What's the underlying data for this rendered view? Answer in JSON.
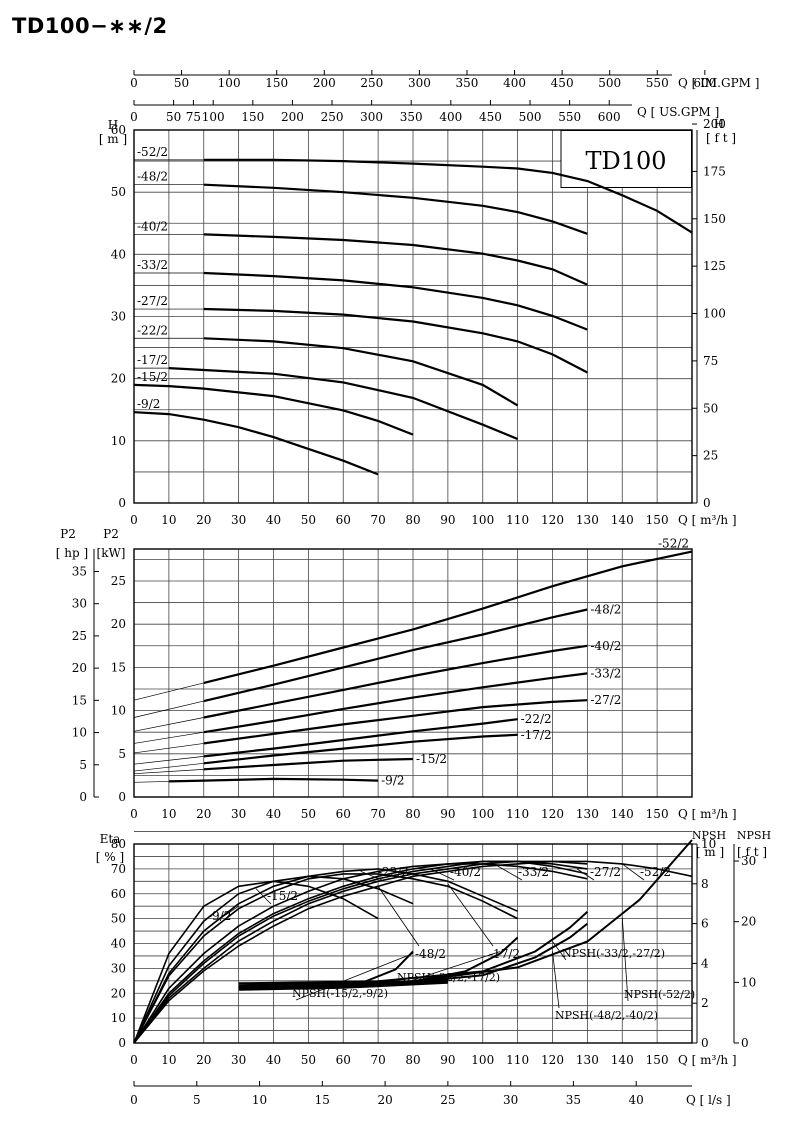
{
  "title": "TD100−∗∗/2",
  "chart_data": [
    {
      "id": "head",
      "type": "line",
      "model_label": "TD100",
      "top_axis_1": {
        "label": "Q [ IM.GPM ]",
        "ticks": [
          "0",
          "50",
          "100",
          "150",
          "200",
          "250",
          "300",
          "350",
          "400",
          "450",
          "500",
          "550",
          "600"
        ]
      },
      "top_axis_2": {
        "label": "Q [ US.GPM ]",
        "ticks": [
          "0",
          "50",
          "75",
          "100",
          "150",
          "200",
          "250",
          "300",
          "350",
          "400",
          "450",
          "500",
          "550",
          "600"
        ]
      },
      "xlabel": "Q [ m³/h ]",
      "x_ticks": [
        "0",
        "10",
        "20",
        "30",
        "40",
        "50",
        "60",
        "70",
        "80",
        "90",
        "100",
        "110",
        "120",
        "130",
        "140",
        "150"
      ],
      "xlim": [
        0,
        160
      ],
      "ylabel_left": "H [ m ]",
      "ylim": [
        0,
        60
      ],
      "y_ticks": [
        "0",
        "10",
        "20",
        "30",
        "40",
        "50",
        "60"
      ],
      "ylabel_right": "H [ f t ]",
      "y_right_ticks": [
        "0",
        "25",
        "50",
        "75",
        "100",
        "125",
        "150",
        "175",
        "200"
      ],
      "series": [
        {
          "name": "-52/2",
          "x": [
            20,
            40,
            60,
            80,
            100,
            110,
            120,
            130,
            140,
            150,
            160
          ],
          "y": [
            55.2,
            55.2,
            55.0,
            54.6,
            54.1,
            53.8,
            53.1,
            51.8,
            49.5,
            47.0,
            43.5
          ]
        },
        {
          "name": "-48/2",
          "x": [
            20,
            40,
            60,
            80,
            100,
            110,
            120,
            130
          ],
          "y": [
            51.2,
            50.7,
            50.0,
            49.1,
            47.8,
            46.8,
            45.3,
            43.3
          ]
        },
        {
          "name": "-40/2",
          "x": [
            20,
            40,
            60,
            80,
            100,
            110,
            120,
            130
          ],
          "y": [
            43.2,
            42.8,
            42.3,
            41.5,
            40.1,
            39.0,
            37.6,
            35.1
          ]
        },
        {
          "name": "-33/2",
          "x": [
            20,
            40,
            60,
            80,
            100,
            110,
            120,
            130
          ],
          "y": [
            37.0,
            36.5,
            35.8,
            34.7,
            33.0,
            31.8,
            30.1,
            27.9
          ]
        },
        {
          "name": "-27/2",
          "x": [
            20,
            40,
            60,
            80,
            100,
            110,
            120,
            130
          ],
          "y": [
            31.2,
            30.9,
            30.3,
            29.2,
            27.3,
            26.0,
            23.9,
            21.0
          ]
        },
        {
          "name": "-22/2",
          "x": [
            20,
            40,
            60,
            80,
            100,
            110
          ],
          "y": [
            26.5,
            26.0,
            24.9,
            22.8,
            19.0,
            15.7
          ]
        },
        {
          "name": "-17/2",
          "x": [
            10,
            20,
            40,
            60,
            80,
            100,
            110
          ],
          "y": [
            21.7,
            21.4,
            20.8,
            19.4,
            16.9,
            12.6,
            10.3
          ]
        },
        {
          "name": "-15/2",
          "x": [
            0,
            10,
            20,
            40,
            60,
            70,
            80
          ],
          "y": [
            19.0,
            18.8,
            18.4,
            17.2,
            14.9,
            13.2,
            11.0
          ]
        },
        {
          "name": "-9/2",
          "x": [
            0,
            10,
            20,
            30,
            40,
            50,
            60,
            70
          ],
          "y": [
            14.6,
            14.3,
            13.4,
            12.2,
            10.6,
            8.7,
            6.8,
            4.6
          ]
        }
      ]
    },
    {
      "id": "power",
      "type": "line",
      "xlabel": "Q [ m³/h ]",
      "x_ticks": [
        "0",
        "10",
        "20",
        "30",
        "40",
        "50",
        "60",
        "70",
        "80",
        "90",
        "100",
        "110",
        "120",
        "130",
        "140",
        "150"
      ],
      "xlim": [
        0,
        160
      ],
      "ylabel_kw": "P2 [kW]",
      "ylim_kw": [
        0,
        28.7
      ],
      "y_ticks_kw": [
        "0",
        "5",
        "10",
        "15",
        "20",
        "25"
      ],
      "ylabel_hp": "P2 [ hp ]",
      "y_ticks_hp": [
        "0",
        "5",
        "10",
        "15",
        "20",
        "25",
        "30",
        "35"
      ],
      "series": [
        {
          "name": "-52/2",
          "x": [
            20,
            40,
            60,
            80,
            100,
            120,
            140,
            160
          ],
          "y": [
            13.2,
            15.2,
            17.3,
            19.4,
            21.8,
            24.4,
            26.7,
            28.4
          ]
        },
        {
          "name": "-48/2",
          "x": [
            20,
            40,
            60,
            80,
            100,
            120,
            130
          ],
          "y": [
            11.1,
            13.0,
            15.0,
            17.0,
            18.8,
            20.8,
            21.7
          ]
        },
        {
          "name": "-40/2",
          "x": [
            20,
            40,
            60,
            80,
            100,
            120,
            130
          ],
          "y": [
            9.2,
            10.8,
            12.4,
            14.0,
            15.5,
            16.9,
            17.5
          ]
        },
        {
          "name": "-33/2",
          "x": [
            20,
            40,
            60,
            80,
            100,
            120,
            130
          ],
          "y": [
            7.5,
            8.8,
            10.2,
            11.5,
            12.7,
            13.8,
            14.3
          ]
        },
        {
          "name": "-27/2",
          "x": [
            20,
            40,
            60,
            80,
            100,
            120,
            130
          ],
          "y": [
            6.2,
            7.3,
            8.4,
            9.4,
            10.4,
            11.0,
            11.2
          ]
        },
        {
          "name": "-22/2",
          "x": [
            20,
            40,
            60,
            80,
            100,
            110
          ],
          "y": [
            4.7,
            5.6,
            6.6,
            7.6,
            8.5,
            9.0
          ]
        },
        {
          "name": "-17/2",
          "x": [
            20,
            40,
            60,
            80,
            100,
            110
          ],
          "y": [
            3.9,
            4.8,
            5.6,
            6.4,
            7.0,
            7.2
          ]
        },
        {
          "name": "-15/2",
          "x": [
            20,
            40,
            60,
            70,
            80
          ],
          "y": [
            3.2,
            3.7,
            4.2,
            4.3,
            4.4
          ]
        },
        {
          "name": "-9/2",
          "x": [
            10,
            20,
            40,
            60,
            70
          ],
          "y": [
            1.8,
            1.9,
            2.1,
            2.0,
            1.9
          ]
        }
      ]
    },
    {
      "id": "efficiency",
      "type": "line",
      "xlabel": "Q [ m³/h ]",
      "x_ticks": [
        "0",
        "10",
        "20",
        "30",
        "40",
        "50",
        "60",
        "70",
        "80",
        "90",
        "100",
        "110",
        "120",
        "130",
        "140",
        "150"
      ],
      "xlim": [
        0,
        160
      ],
      "ylabel": "Eta [ % ]",
      "ylim": [
        0,
        80
      ],
      "y_ticks": [
        "0",
        "10",
        "20",
        "30",
        "40",
        "50",
        "60",
        "70",
        "80"
      ],
      "npsh_m_label": "NPSH [ m ]",
      "npsh_m_ticks": [
        "0",
        "2",
        "4",
        "6",
        "8",
        "10"
      ],
      "npsh_ft_label": "NPSH [ f t ]",
      "npsh_ft_ticks": [
        "0",
        "10",
        "20",
        "30"
      ],
      "bottom_axis": {
        "label": "Q [ l/s ]",
        "ticks": [
          "0",
          "5",
          "10",
          "15",
          "20",
          "25",
          "30",
          "35",
          "40"
        ]
      },
      "series": [
        {
          "name": "-9/2",
          "x": [
            0,
            10,
            20,
            30,
            40,
            50,
            60,
            70
          ],
          "y": [
            0,
            36,
            55,
            63,
            65,
            63,
            58,
            50
          ]
        },
        {
          "name": "-15/2",
          "x": [
            0,
            10,
            20,
            30,
            40,
            50,
            60,
            70,
            80
          ],
          "y": [
            0,
            31,
            49,
            60,
            65,
            67,
            66,
            62,
            56
          ]
        },
        {
          "name": "-22/2",
          "x": [
            0,
            10,
            20,
            30,
            40,
            50,
            60,
            70,
            80,
            90,
            100,
            110
          ],
          "y": [
            0,
            27,
            43,
            54,
            61,
            66,
            68,
            68,
            66,
            63,
            57,
            50
          ]
        },
        {
          "name": "-17/2",
          "x": [
            0,
            10,
            20,
            30,
            40,
            50,
            60,
            70,
            80,
            90,
            100,
            110
          ],
          "y": [
            0,
            28,
            45,
            56,
            63,
            67,
            69,
            70,
            68,
            65,
            59,
            53
          ]
        },
        {
          "name": "-27/2",
          "x": [
            0,
            10,
            20,
            30,
            40,
            50,
            60,
            70,
            80,
            90,
            100,
            110,
            120,
            130
          ],
          "y": [
            0,
            22,
            36,
            47,
            55,
            61,
            66,
            69,
            71,
            72,
            72,
            71,
            69,
            66
          ]
        },
        {
          "name": "-33/2",
          "x": [
            0,
            10,
            20,
            30,
            40,
            50,
            60,
            70,
            80,
            90,
            100,
            110,
            120,
            130
          ],
          "y": [
            0,
            20,
            33,
            44,
            52,
            58,
            63,
            67,
            70,
            72,
            73,
            73,
            71,
            68
          ]
        },
        {
          "name": "-40/2",
          "x": [
            0,
            10,
            20,
            30,
            40,
            50,
            60,
            70,
            80,
            90,
            100,
            110,
            120,
            130
          ],
          "y": [
            0,
            19,
            32,
            43,
            51,
            57,
            62,
            66,
            69,
            71,
            73,
            73,
            72,
            70
          ]
        },
        {
          "name": "-48/2",
          "x": [
            0,
            10,
            20,
            30,
            40,
            50,
            60,
            70,
            80,
            90,
            100,
            110,
            120,
            130
          ],
          "y": [
            0,
            18,
            30,
            41,
            49,
            56,
            61,
            65,
            68,
            70,
            72,
            73,
            73,
            72
          ]
        },
        {
          "name": "-52/2",
          "x": [
            0,
            10,
            20,
            30,
            40,
            50,
            60,
            70,
            80,
            90,
            100,
            110,
            120,
            130,
            140,
            150,
            160
          ],
          "y": [
            0,
            17,
            29,
            39,
            47,
            54,
            59,
            63,
            67,
            69,
            71,
            72,
            73,
            73,
            72,
            70,
            67
          ]
        }
      ],
      "npsh_series": [
        {
          "name": "NPSH(-15/2,-9/2)",
          "x": [
            30,
            50,
            65,
            75,
            80
          ],
          "y": [
            2.8,
            2.8,
            3.0,
            3.7,
            4.6
          ]
        },
        {
          "name": "NPSH(-22/2,-17/2)",
          "x": [
            30,
            60,
            80,
            95,
            105,
            110
          ],
          "y": [
            2.8,
            2.9,
            3.1,
            3.6,
            4.5,
            5.3
          ]
        },
        {
          "name": "NPSH(-33/2,-27/2)",
          "x": [
            30,
            70,
            100,
            115,
            125,
            130
          ],
          "y": [
            3.0,
            3.1,
            3.6,
            4.6,
            5.8,
            6.6
          ]
        },
        {
          "name": "NPSH(-48/2,-40/2)",
          "x": [
            30,
            70,
            100,
            115,
            125,
            130
          ],
          "y": [
            2.8,
            2.9,
            3.4,
            4.3,
            5.3,
            6.0
          ]
        },
        {
          "name": "NPSH(-52/2)",
          "x": [
            30,
            80,
            110,
            130,
            145,
            160
          ],
          "y": [
            2.9,
            3.1,
            3.8,
            5.1,
            7.2,
            10.2
          ]
        }
      ]
    }
  ]
}
